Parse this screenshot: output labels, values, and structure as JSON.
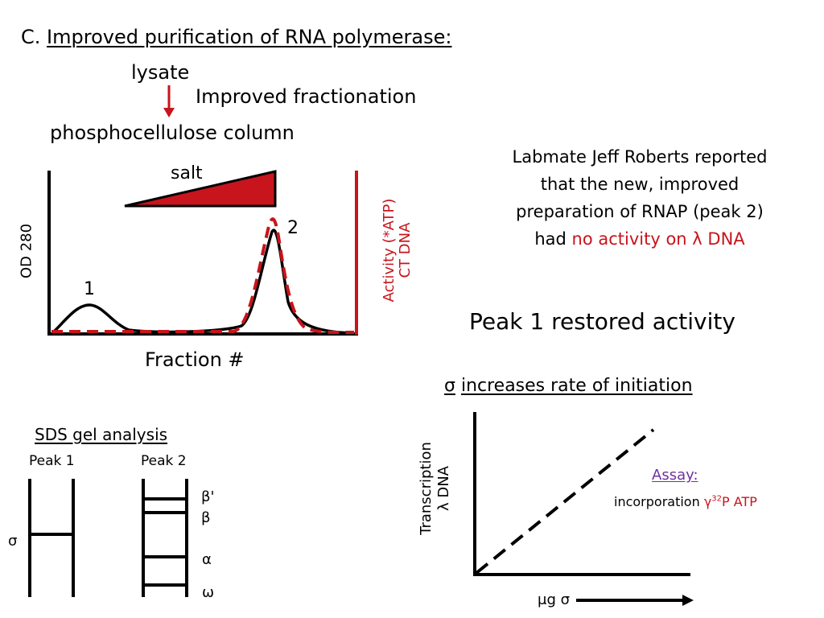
{
  "slide": {
    "title_prefix": "C.",
    "title_text": "Improved purification of RNA polymerase:"
  },
  "flow": {
    "lysate": "lysate",
    "improved_fractionation": "Improved fractionation",
    "column": "phosphocellulose column"
  },
  "elution_plot": {
    "salt_label": "salt",
    "peak1_label": "1",
    "peak2_label": "2",
    "x_label": "Fraction #",
    "y_left_label": "OD 280",
    "y_right_label_line1": "Activity (*ATP)",
    "y_right_label_line2": "CT DNA",
    "colors": {
      "od_trace": "#000000",
      "activity_trace": "#c8141c",
      "salt_gradient": "#c8141c"
    }
  },
  "report": {
    "text_black": "Labmate Jeff Roberts reported that the new, improved preparation of RNAP (peak 2) had",
    "text_red": "no activity on λ DNA"
  },
  "restored": "Peak 1 restored activity",
  "sigma_heading": {
    "symbol": "σ",
    "text": "increases rate of initiation"
  },
  "gel": {
    "title": "SDS gel analysis",
    "lane1_label": "Peak 1",
    "lane2_label": "Peak 2",
    "sigma_band": "σ",
    "beta_prime_band": "β'",
    "beta_band": "β",
    "alpha_band": "α",
    "omega_band": "ω"
  },
  "transcription_plot": {
    "y_label_line1": "Transcription",
    "y_label_line2": "λ DNA",
    "x_label": "μg σ",
    "assay_label": "Assay:",
    "incorporation_text": "incorporation",
    "gamma": "γ",
    "isotope": "32",
    "atp_text": "P ATP",
    "colors": {
      "assay": "#7030a0",
      "red": "#c8141c"
    }
  }
}
